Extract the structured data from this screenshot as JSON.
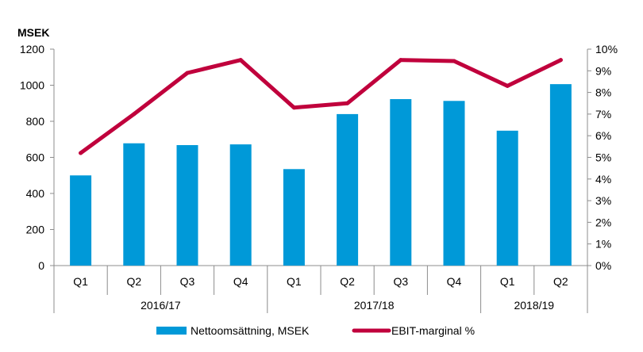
{
  "chart_data": {
    "type": "bar",
    "y_unit_label": "MSEK",
    "categories": [
      "Q1",
      "Q2",
      "Q3",
      "Q4",
      "Q1",
      "Q2",
      "Q3",
      "Q4",
      "Q1",
      "Q2"
    ],
    "groups": [
      {
        "label": "2016/17",
        "count": 4
      },
      {
        "label": "2017/18",
        "count": 4
      },
      {
        "label": "2018/19",
        "count": 2
      }
    ],
    "series": [
      {
        "name": "Nettoomsättning, MSEK",
        "type": "bar",
        "axis": "left",
        "color": "#0099d8",
        "values": [
          500,
          678,
          668,
          672,
          535,
          840,
          923,
          913,
          748,
          1006
        ]
      },
      {
        "name": "EBIT-marginal %",
        "type": "line",
        "axis": "right",
        "color": "#c0003c",
        "values": [
          5.2,
          7.0,
          8.9,
          9.5,
          7.3,
          7.5,
          9.5,
          9.45,
          8.3,
          9.5
        ]
      }
    ],
    "y_left": {
      "min": 0,
      "max": 1200,
      "step": 200
    },
    "y_right": {
      "min": 0,
      "max": 10,
      "step": 1,
      "suffix": "%"
    },
    "grid": false,
    "legend_position": "bottom"
  }
}
